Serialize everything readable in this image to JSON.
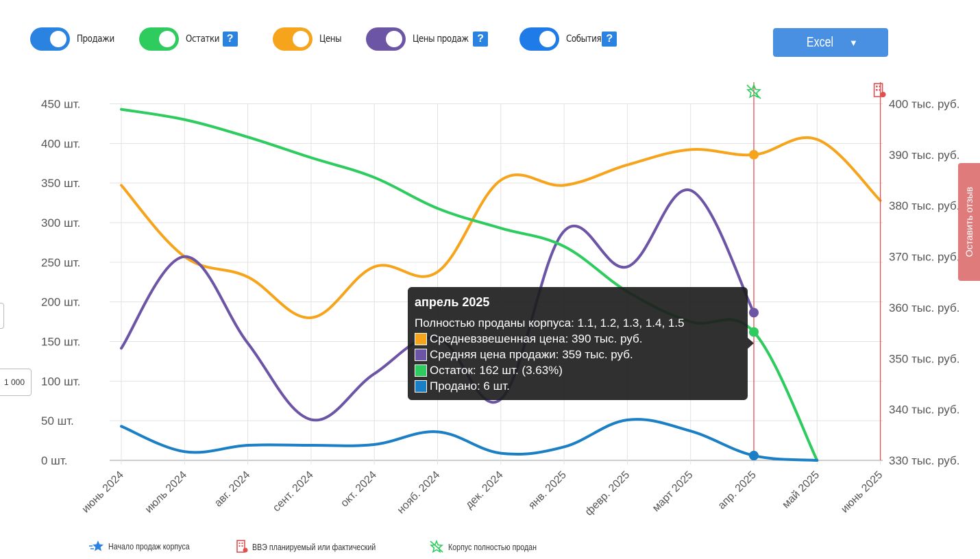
{
  "toolbar": {
    "toggles": [
      {
        "label": "Продажи",
        "color": "#2a83e0",
        "help": false
      },
      {
        "label": "Остатки",
        "color": "#2ecc5e",
        "help": true
      },
      {
        "label": "Цены",
        "color": "#f5a41c",
        "help": false
      },
      {
        "label": "Цены продаж",
        "color": "#6d55a6",
        "help": true
      },
      {
        "label": "События",
        "color": "#1f7be8",
        "help": true
      }
    ],
    "help_glyph": "?",
    "excel_label": "Excel"
  },
  "feedback_label": "Оставить отзыв",
  "side_control_value": "1 000",
  "tooltip": {
    "title": "апрель 2025",
    "lines": [
      {
        "text": "Полностью проданы корпуса: 1.1, 1.2, 1.3, 1.4, 1.5",
        "color": ""
      },
      {
        "text": "Средневзвешенная цена: 390 тыс. руб.",
        "color": "#f5a41c"
      },
      {
        "text": "Средняя цена продажи: 359 тыс. руб.",
        "color": "#6d55a6"
      },
      {
        "text": "Остаток: 162 шт. (3.63%)",
        "color": "#2ecc5e"
      },
      {
        "text": "Продано: 6 шт.",
        "color": "#1a7fc4"
      }
    ]
  },
  "legend": [
    {
      "label": "Начало продаж корпуса",
      "icon": "star-icon"
    },
    {
      "label": "ВВЭ планируемый или фактический",
      "icon": "building-icon"
    },
    {
      "label": "Корпус полностью продан",
      "icon": "star-crossed-icon"
    }
  ],
  "chart_data": {
    "type": "line",
    "categories": [
      "июнь 2024",
      "июль 2024",
      "авг. 2024",
      "сент. 2024",
      "окт. 2024",
      "нояб. 2024",
      "дек. 2024",
      "янв. 2025",
      "февр. 2025",
      "март 2025",
      "апр. 2025",
      "май 2025",
      "июнь 2025"
    ],
    "y_left": {
      "min": 0,
      "max": 450,
      "ticks": [
        "0 шт.",
        "50 шт.",
        "100 шт.",
        "150 шт.",
        "200 шт.",
        "250 шт.",
        "300 шт.",
        "350 шт.",
        "400 шт.",
        "450 шт."
      ]
    },
    "y_right": {
      "min": 330,
      "max": 400,
      "ticks": [
        "330 тыс. руб.",
        "340 тыс. руб.",
        "350 тыс. руб.",
        "360 тыс. руб.",
        "370 тыс. руб.",
        "380 тыс. руб.",
        "390 тыс. руб.",
        "400 тыс. руб."
      ]
    },
    "grid": true,
    "series": [
      {
        "name": "Средневзвешенная цена",
        "axis": "right",
        "color": "#f5a41c",
        "values": [
          384,
          370,
          366,
          358,
          368,
          367,
          385,
          384,
          388,
          391,
          390,
          393,
          381
        ]
      },
      {
        "name": "Средняя цена продажи",
        "axis": "right",
        "color": "#6d55a6",
        "values": [
          352,
          370,
          353,
          338,
          347,
          354,
          342,
          375,
          368,
          383,
          359,
          null,
          null
        ]
      },
      {
        "name": "Остаток",
        "axis": "left",
        "color": "#2ecc5e",
        "values": [
          443,
          430,
          408,
          382,
          357,
          318,
          293,
          270,
          213,
          175,
          162,
          0,
          null
        ]
      },
      {
        "name": "Продано",
        "axis": "left",
        "color": "#1a7fc4",
        "values": [
          43,
          11,
          19,
          19,
          20,
          36,
          9,
          17,
          51,
          37,
          6,
          0,
          null
        ]
      }
    ],
    "event_lines": [
      {
        "category": "апр. 2025",
        "icon": "star-crossed-icon",
        "color": "#e05050"
      },
      {
        "category": "июнь 2025",
        "icon": "building-icon",
        "color": "#e05050"
      }
    ],
    "highlight_category": "апр. 2025"
  }
}
